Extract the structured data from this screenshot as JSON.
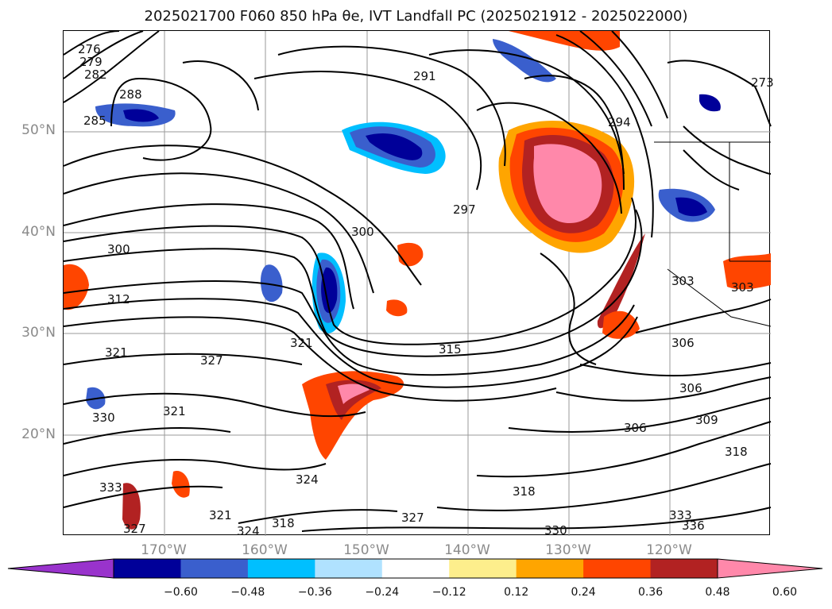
{
  "title": "2025021700 F060 850 hPa θe, IVT Landfall PC (2025021912 - 2025022000)",
  "lat_labels": [
    "50°N",
    "40°N",
    "30°N",
    "20°N"
  ],
  "lon_labels": [
    "170°W",
    "160°W",
    "150°W",
    "140°W",
    "130°W",
    "120°W"
  ],
  "colorbar": {
    "ticks": [
      "−0.60",
      "−0.48",
      "−0.36",
      "−0.24",
      "−0.12",
      "0.12",
      "0.24",
      "0.36",
      "0.48",
      "0.60"
    ],
    "colors": [
      "#9933cc",
      "#000099",
      "#3a5fcd",
      "#00bfff",
      "#b0e2ff",
      "#ffffff",
      "#fdee8c",
      "#ffa500",
      "#ff4500",
      "#b22222",
      "#ff88aa"
    ]
  },
  "contour_labels": [
    "276",
    "279",
    "282",
    "285",
    "288",
    "291",
    "294",
    "297",
    "300",
    "303",
    "306",
    "309",
    "312",
    "315",
    "318",
    "321",
    "324",
    "327",
    "330",
    "333",
    "336"
  ],
  "map_labels": {
    "l276": "276",
    "l279": "279",
    "l282": "282",
    "l285": "285",
    "l288": "288",
    "l291": "291",
    "l294": "294",
    "l297": "297",
    "l300a": "300",
    "l300b": "300",
    "l303a": "303",
    "l303b": "303",
    "l306a": "306",
    "l306b": "306",
    "l306c": "306",
    "l309": "309",
    "l312": "312",
    "l315": "315",
    "l318a": "318",
    "l318b": "318",
    "l321a": "321",
    "l321b": "321",
    "l321c": "321",
    "l321d": "321",
    "l324a": "324",
    "l324b": "324",
    "l327a": "327",
    "l327b": "327",
    "l327c": "327",
    "l330a": "330",
    "l330b": "330",
    "l333a": "333",
    "l333b": "333",
    "l336": "336",
    "l273": "273",
    "l318c": "318"
  }
}
